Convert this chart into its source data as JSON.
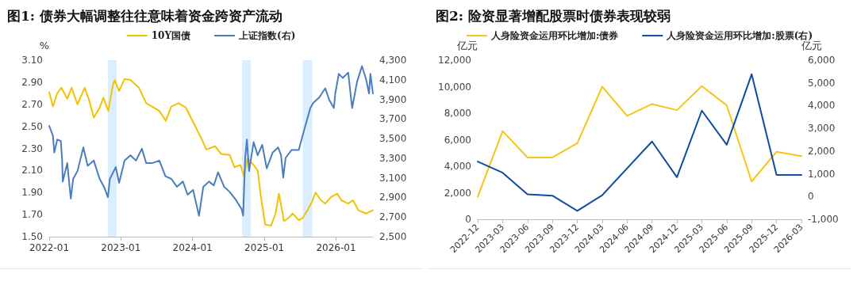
{
  "chart_data": [
    {
      "type": "line",
      "title": "图1: 债券大幅调整往往意味着资金跨资产流动",
      "ylabel": "%",
      "legend": "top",
      "grid": false,
      "marker": "none",
      "line_style": "solid",
      "xlim": [
        "2022-01-01",
        "2026-07-08"
      ],
      "xticks": [
        "2022-01",
        "2023-01",
        "2024-01",
        "2025-01",
        "2026-01"
      ],
      "ylim": [
        1.5,
        3.1
      ],
      "yticks": [
        {
          "value": 1.5,
          "label": "1.50"
        },
        {
          "value": 1.7,
          "label": "1.70"
        },
        {
          "value": 1.9,
          "label": "1.90"
        },
        {
          "value": 2.1,
          "label": "2.10"
        },
        {
          "value": 2.3,
          "label": "2.30"
        },
        {
          "value": 2.5,
          "label": "2.50"
        },
        {
          "value": 2.7,
          "label": "2.70"
        },
        {
          "value": 2.9,
          "label": "2.90"
        },
        {
          "value": 3.1,
          "label": "3.10"
        }
      ],
      "y2lim": [
        2500,
        4300
      ],
      "y2ticks": [
        {
          "value": 2500,
          "label": "2,500"
        },
        {
          "value": 2700,
          "label": "2,700"
        },
        {
          "value": 2900,
          "label": "2,900"
        },
        {
          "value": 3100,
          "label": "3,100"
        },
        {
          "value": 3300,
          "label": "3,300"
        },
        {
          "value": 3500,
          "label": "3,500"
        },
        {
          "value": 3700,
          "label": "3,700"
        },
        {
          "value": 3900,
          "label": "3,900"
        },
        {
          "value": 4100,
          "label": "4,100"
        },
        {
          "value": 4300,
          "label": "4,300"
        }
      ],
      "bands": [
        {
          "axis": "x",
          "from": "2022-10-27",
          "to": "2022-12-10",
          "color": "#dbeeff"
        },
        {
          "axis": "x",
          "from": "2024-09-09",
          "to": "2024-10-23",
          "color": "#dbeeff"
        },
        {
          "axis": "x",
          "from": "2025-07-16",
          "to": "2025-09-02",
          "color": "#dbeeff"
        }
      ],
      "series": [
        {
          "name": "10Y国债",
          "color": "#f2c200",
          "x": [
            "2022-01-01",
            "2022-01-20",
            "2022-02-11",
            "2022-03-04",
            "2022-04-03",
            "2022-04-25",
            "2022-05-25",
            "2022-07-01",
            "2022-07-23",
            "2022-08-16",
            "2022-09-15",
            "2022-10-04",
            "2022-10-29",
            "2022-11-21",
            "2022-12-01",
            "2022-12-23",
            "2023-01-20",
            "2023-02-19",
            "2023-04-03",
            "2023-05-10",
            "2023-06-09",
            "2023-07-16",
            "2023-08-18",
            "2023-09-15",
            "2023-10-22",
            "2023-11-28",
            "2024-01-04",
            "2024-02-18",
            "2024-03-11",
            "2024-04-25",
            "2024-05-25",
            "2024-07-09",
            "2024-08-01",
            "2024-09-01",
            "2024-09-19",
            "2024-10-07",
            "2024-11-07",
            "2024-11-28",
            "2024-12-13",
            "2025-01-05",
            "2025-02-04",
            "2025-02-27",
            "2025-03-16",
            "2025-04-04",
            "2025-04-10",
            "2025-05-04",
            "2025-05-25",
            "2025-06-25",
            "2025-07-16",
            "2025-08-09",
            "2025-09-01",
            "2025-09-19",
            "2025-10-16",
            "2025-11-07",
            "2025-12-07",
            "2026-01-07",
            "2026-01-28",
            "2026-03-04",
            "2026-03-28",
            "2026-04-25",
            "2026-06-03",
            "2026-07-08"
          ],
          "values": [
            2.81,
            2.68,
            2.8,
            2.85,
            2.75,
            2.85,
            2.7,
            2.85,
            2.74,
            2.58,
            2.67,
            2.76,
            2.64,
            2.87,
            2.92,
            2.82,
            2.93,
            2.92,
            2.85,
            2.71,
            2.68,
            2.64,
            2.55,
            2.68,
            2.71,
            2.67,
            2.54,
            2.38,
            2.29,
            2.32,
            2.25,
            2.24,
            2.13,
            2.15,
            2.05,
            2.21,
            2.15,
            2.1,
            1.88,
            1.61,
            1.6,
            1.71,
            1.89,
            1.71,
            1.64,
            1.67,
            1.71,
            1.65,
            1.67,
            1.74,
            1.82,
            1.9,
            1.83,
            1.8,
            1.86,
            1.89,
            1.83,
            1.8,
            1.83,
            1.74,
            1.71,
            1.74
          ]
        },
        {
          "name": "上证指数(右)",
          "color": "#4a7cc0",
          "axis": "y2",
          "x": [
            "2022-01-01",
            "2022-01-20",
            "2022-01-27",
            "2022-02-11",
            "2022-03-01",
            "2022-03-08",
            "2022-03-11",
            "2022-04-03",
            "2022-04-21",
            "2022-05-03",
            "2022-05-25",
            "2022-06-24",
            "2022-07-16",
            "2022-08-16",
            "2022-09-15",
            "2022-10-07",
            "2022-10-27",
            "2022-11-06",
            "2022-12-06",
            "2022-12-23",
            "2023-01-20",
            "2023-02-19",
            "2023-03-19",
            "2023-04-18",
            "2023-05-10",
            "2023-06-09",
            "2023-07-16",
            "2023-08-16",
            "2023-09-15",
            "2023-10-13",
            "2023-11-13",
            "2023-12-07",
            "2024-01-04",
            "2024-02-03",
            "2024-02-25",
            "2024-03-25",
            "2024-04-18",
            "2024-05-10",
            "2024-06-10",
            "2024-07-09",
            "2024-08-09",
            "2024-09-07",
            "2024-09-15",
            "2024-09-25",
            "2024-10-04",
            "2024-10-15",
            "2024-11-07",
            "2024-11-28",
            "2024-12-21",
            "2025-01-13",
            "2025-02-12",
            "2025-03-12",
            "2025-03-27",
            "2025-04-07",
            "2025-04-19",
            "2025-05-19",
            "2025-06-25",
            "2025-07-24",
            "2025-08-23",
            "2025-09-07",
            "2025-10-07",
            "2025-11-07",
            "2025-11-28",
            "2025-12-21",
            "2025-12-28",
            "2026-01-15",
            "2026-02-04",
            "2026-03-04",
            "2026-03-24",
            "2026-04-18",
            "2026-05-13",
            "2026-06-03",
            "2026-06-18",
            "2026-06-25",
            "2026-07-08"
          ],
          "values": [
            3630,
            3530,
            3357,
            3490,
            3477,
            3276,
            3062,
            3250,
            2888,
            3089,
            3169,
            3410,
            3223,
            3276,
            3089,
            3009,
            2902,
            3089,
            3209,
            3049,
            3276,
            3330,
            3276,
            3397,
            3250,
            3250,
            3276,
            3116,
            3089,
            3009,
            3062,
            2928,
            2977,
            2714,
            3009,
            3062,
            3022,
            3156,
            3009,
            2955,
            2875,
            2781,
            2714,
            3303,
            3490,
            3169,
            3464,
            3330,
            3437,
            3196,
            3357,
            3410,
            3330,
            3102,
            3303,
            3383,
            3383,
            3598,
            3812,
            3865,
            3919,
            4013,
            3892,
            3812,
            3959,
            4160,
            4119,
            4173,
            3812,
            4079,
            4240,
            4106,
            3959,
            4160,
            3959
          ]
        }
      ]
    },
    {
      "type": "line",
      "title": "图2: 险资显著增配股票时债券表现较弱",
      "ylabel": "亿元",
      "y2label": "亿元",
      "legend": "top",
      "grid": false,
      "marker": "none",
      "line_style": "solid",
      "categories": [
        "2022-12",
        "2023-03",
        "2023-06",
        "2023-09",
        "2023-12",
        "2024-03",
        "2024-06",
        "2024-09",
        "2024-12",
        "2025-03",
        "2025-06",
        "2025-09",
        "2025-12",
        "2026-03"
      ],
      "ylim": [
        0,
        12000
      ],
      "yticks": [
        0,
        {
          "value": 2000,
          "label": "2,000"
        },
        {
          "value": 4000,
          "label": "4,000"
        },
        {
          "value": 6000,
          "label": "6,000"
        },
        {
          "value": 8000,
          "label": "8,000"
        },
        {
          "value": 10000,
          "label": "10,000"
        },
        {
          "value": 12000,
          "label": "12,000"
        }
      ],
      "y2lim": [
        -1000,
        6000
      ],
      "y2ticks": [
        {
          "value": -1000,
          "label": "-1,000"
        },
        0,
        {
          "value": 1000,
          "label": "1,000"
        },
        {
          "value": 2000,
          "label": "2,000"
        },
        {
          "value": 3000,
          "label": "3,000"
        },
        {
          "value": 4000,
          "label": "4,000"
        },
        {
          "value": 5000,
          "label": "5,000"
        },
        {
          "value": 6000,
          "label": "6,000"
        }
      ],
      "series": [
        {
          "name": "人身险资金运用环比增加:债券",
          "color": "#f5c518",
          "values": [
            1700,
            6650,
            4660,
            4660,
            5740,
            10000,
            7800,
            8690,
            8230,
            10040,
            8590,
            2850,
            5090,
            4760
          ]
        },
        {
          "name": "人身险资金运用环比增加:股票(右)",
          "color": "#0d4ca0",
          "axis": "y2",
          "values": [
            1540,
            1050,
            100,
            40,
            -630,
            60,
            1240,
            2420,
            850,
            3780,
            2280,
            5380,
            950,
            950
          ]
        }
      ]
    }
  ]
}
